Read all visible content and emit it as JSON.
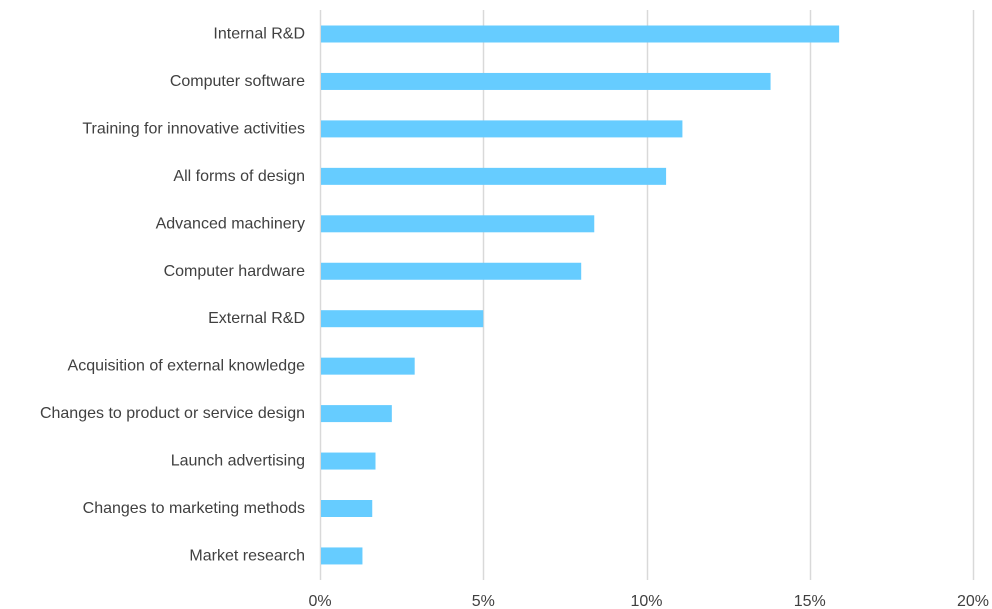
{
  "colors": {
    "bar": "#66ccff",
    "grid": "#d9d9d9",
    "text": "#404040"
  },
  "chart_data": {
    "type": "bar",
    "orientation": "horizontal",
    "categories": [
      "Internal R&D",
      "Computer software",
      "Training for innovative activities",
      "All forms of design",
      "Advanced machinery",
      "Computer hardware",
      "External R&D",
      "Acquisition of external knowledge",
      "Changes to product or service design",
      "Launch advertising",
      "Changes to marketing methods",
      "Market research"
    ],
    "values": [
      15.9,
      13.8,
      11.1,
      10.6,
      8.4,
      8.0,
      5.0,
      2.9,
      2.2,
      1.7,
      1.6,
      1.3
    ],
    "xlim": [
      0,
      20
    ],
    "xticks": [
      0,
      5,
      10,
      15,
      20
    ],
    "xtick_labels": [
      "0%",
      "5%",
      "10%",
      "15%",
      "20%"
    ],
    "title": "",
    "xlabel": "",
    "ylabel": "",
    "grid": "vertical",
    "legend": "none"
  }
}
